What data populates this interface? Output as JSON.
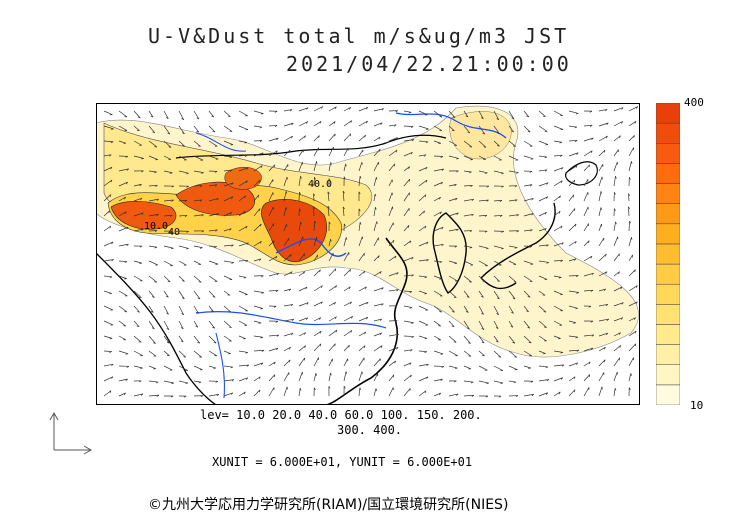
{
  "header": {
    "title_line1": "U-V&Dust total m/s&ug/m3 JST",
    "title_line2": "2021/04/22.21:00:00"
  },
  "colorbar": {
    "top_label": "400",
    "bottom_label": "10",
    "colors": [
      "#fffbe0",
      "#fff6c4",
      "#fff0a8",
      "#ffea8c",
      "#ffe270",
      "#ffd85a",
      "#ffcc44",
      "#ffbe30",
      "#ffae20",
      "#ff9a18",
      "#ff8414",
      "#ff6c10",
      "#f85a10",
      "#f04c0c",
      "#e84008"
    ]
  },
  "contour_labels": [
    "40.0",
    "10.0",
    "40"
  ],
  "legend": {
    "levels_line1": "lev= 10.0 20.0 40.0 60.0 100. 150. 200.",
    "levels_line2": "300. 400."
  },
  "units": {
    "text": "XUNIT = 6.000E+01, YUNIT = 6.000E+01"
  },
  "credit": {
    "text": "©九州大学応用力学研究所(RIAM)/国立環境研究所(NIES)"
  },
  "palette": {
    "dust_light": "#fff4c8",
    "dust_mid": "#ffe48a",
    "dust_high": "#ffd040",
    "dust_extreme": "#f05a10",
    "river": "#1a4fff",
    "coast": "#000000"
  }
}
